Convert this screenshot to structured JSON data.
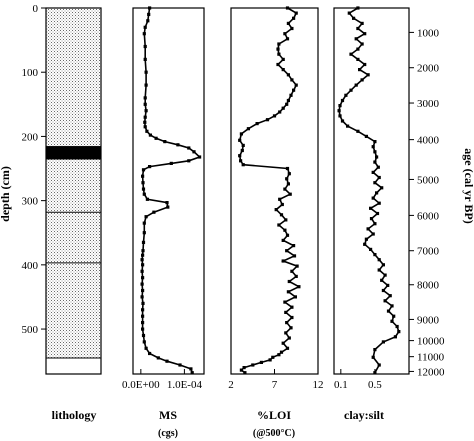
{
  "chart_data": {
    "type": "line",
    "depth_axis": {
      "label": "depth (cm)",
      "range": [
        0,
        570
      ],
      "reversed": true,
      "ticks": [
        0,
        100,
        200,
        300,
        400,
        500
      ]
    },
    "age_axis": {
      "label": "age (cal yr BP)",
      "ticks": [
        1000,
        2000,
        3000,
        4000,
        5000,
        6000,
        7000,
        8000,
        9000,
        10000,
        11000,
        12000
      ],
      "tick_depths": [
        38,
        93,
        148,
        205,
        267,
        323,
        378,
        431,
        485,
        518,
        543,
        566
      ]
    },
    "panels": [
      {
        "id": "lithology",
        "title": "lithology",
        "units": [
          {
            "kind": "stippled",
            "top": 0,
            "bottom": 215
          },
          {
            "kind": "black",
            "top": 215,
            "bottom": 236
          },
          {
            "kind": "stippled",
            "top": 236,
            "bottom": 545
          },
          {
            "kind": "blank",
            "top": 545,
            "bottom": 570
          }
        ],
        "boundaries": [
          318,
          397,
          545
        ]
      },
      {
        "id": "ms",
        "title": "MS",
        "subtitle": "(cgs)",
        "xlim": [
          -1.8e-05,
          0.000145
        ],
        "xticks": [
          {
            "value": 0,
            "label": "0.0E+00"
          },
          {
            "value": 0.0001,
            "label": "1.0E-04"
          }
        ],
        "x": [
          2e-05,
          1.8e-05,
          1.6e-05,
          1e-05,
          8e-06,
          1e-05,
          1e-05,
          1.2e-05,
          1.2e-05,
          1e-05,
          1e-05,
          1.2e-05,
          1e-05,
          9e-06,
          1e-05,
          1.4e-05,
          2.2e-05,
          3.5e-05,
          5.5e-05,
          8.5e-05,
          0.00011,
          0.000122,
          0.000135,
          0.00011,
          7e-05,
          2e-05,
          6e-06,
          4e-06,
          5e-06,
          6e-06,
          8e-06,
          1.5e-05,
          6e-05,
          6.2e-05,
          3e-05,
          1.2e-05,
          8e-06,
          8e-06,
          6e-06,
          5e-06,
          4e-06,
          3e-06,
          4e-06,
          3e-06,
          4e-06,
          3e-06,
          4e-06,
          3e-06,
          5e-06,
          4e-06,
          4e-06,
          4e-06,
          4e-06,
          6e-06,
          8e-06,
          1.2e-05,
          2e-05,
          4e-05,
          6e-05,
          9e-05,
          0.000115,
          0.000118
        ],
        "y": [
          0,
          10,
          20,
          30,
          40,
          60,
          80,
          100,
          120,
          140,
          150,
          160,
          170,
          178,
          185,
          192,
          198,
          203,
          208,
          213,
          218,
          224,
          232,
          238,
          242,
          247,
          252,
          262,
          272,
          282,
          290,
          298,
          303,
          310,
          318,
          325,
          335,
          350,
          365,
          378,
          385,
          392,
          400,
          410,
          420,
          430,
          440,
          450,
          460,
          470,
          480,
          490,
          500,
          510,
          520,
          530,
          538,
          545,
          550,
          556,
          562,
          568
        ]
      },
      {
        "id": "loi",
        "title": "%LOI",
        "subtitle": "(@500°C)",
        "xlim": [
          2,
          12
        ],
        "xticks": [
          {
            "value": 2,
            "label": "2"
          },
          {
            "value": 7,
            "label": "7"
          },
          {
            "value": 12,
            "label": "12"
          }
        ],
        "x": [
          8.5,
          9.5,
          9.2,
          8.6,
          9.0,
          8.2,
          8.5,
          7.5,
          7.4,
          7.5,
          8.0,
          7.4,
          8.0,
          8.6,
          9.0,
          9.5,
          9.2,
          8.9,
          8.6,
          8.4,
          8.0,
          7.6,
          7.0,
          6.2,
          5.0,
          4.0,
          3.2,
          3.0,
          3.4,
          3.3,
          3.0,
          3.1,
          3.4,
          8.5,
          8.7,
          8.4,
          8.6,
          8.2,
          8.8,
          7.6,
          7.9,
          7.2,
          7.8,
          8.3,
          7.5,
          8.2,
          8.5,
          8.0,
          9.2,
          8.4,
          9.3,
          8.0,
          9.6,
          9.0,
          9.5,
          8.7,
          9.8,
          8.6,
          9.4,
          8.2,
          9.0,
          8.3,
          9.0,
          8.4,
          8.9,
          8.3,
          8.7,
          8.0,
          8.5,
          7.8,
          7.5,
          6.8,
          6.5,
          5.5,
          4.5,
          3.5,
          3.2,
          3.6
        ],
        "y": [
          0,
          8,
          16,
          24,
          32,
          40,
          48,
          56,
          64,
          72,
          80,
          88,
          96,
          104,
          112,
          120,
          128,
          136,
          144,
          150,
          156,
          162,
          168,
          174,
          180,
          188,
          196,
          206,
          214,
          222,
          230,
          238,
          244,
          250,
          258,
          266,
          274,
          282,
          290,
          298,
          306,
          314,
          322,
          330,
          338,
          346,
          354,
          362,
          370,
          378,
          386,
          394,
          402,
          410,
          418,
          426,
          434,
          442,
          450,
          458,
          466,
          474,
          482,
          490,
          498,
          506,
          514,
          522,
          530,
          536,
          540,
          544,
          548,
          552,
          556,
          560,
          564,
          568
        ]
      },
      {
        "id": "clay",
        "title": "clay:silt",
        "xlim": [
          0.02,
          0.9
        ],
        "xticks": [
          {
            "value": 0.1,
            "label": "0.1"
          },
          {
            "value": 0.5,
            "label": "0.5"
          }
        ],
        "x": [
          0.3,
          0.2,
          0.25,
          0.35,
          0.3,
          0.38,
          0.28,
          0.35,
          0.3,
          0.22,
          0.3,
          0.38,
          0.32,
          0.42,
          0.35,
          0.28,
          0.22,
          0.16,
          0.12,
          0.09,
          0.08,
          0.09,
          0.12,
          0.18,
          0.3,
          0.4,
          0.5,
          0.48,
          0.5,
          0.52,
          0.5,
          0.54,
          0.48,
          0.55,
          0.5,
          0.58,
          0.52,
          0.48,
          0.55,
          0.45,
          0.53,
          0.46,
          0.5,
          0.42,
          0.48,
          0.4,
          0.38,
          0.45,
          0.5,
          0.55,
          0.6,
          0.55,
          0.62,
          0.58,
          0.65,
          0.6,
          0.68,
          0.62,
          0.7,
          0.66,
          0.72,
          0.7,
          0.76,
          0.78,
          0.74,
          0.6,
          0.5,
          0.48,
          0.55,
          0.5
        ],
        "y": [
          0,
          8,
          16,
          24,
          32,
          40,
          48,
          56,
          64,
          72,
          80,
          88,
          96,
          104,
          112,
          120,
          128,
          136,
          144,
          152,
          160,
          168,
          176,
          184,
          192,
          200,
          208,
          216,
          224,
          232,
          240,
          248,
          256,
          264,
          272,
          280,
          288,
          296,
          304,
          312,
          320,
          328,
          336,
          344,
          352,
          360,
          368,
          376,
          384,
          392,
          400,
          408,
          416,
          424,
          432,
          440,
          448,
          456,
          464,
          472,
          480,
          488,
          496,
          504,
          512,
          520,
          532,
          544,
          556,
          568
        ]
      }
    ]
  }
}
